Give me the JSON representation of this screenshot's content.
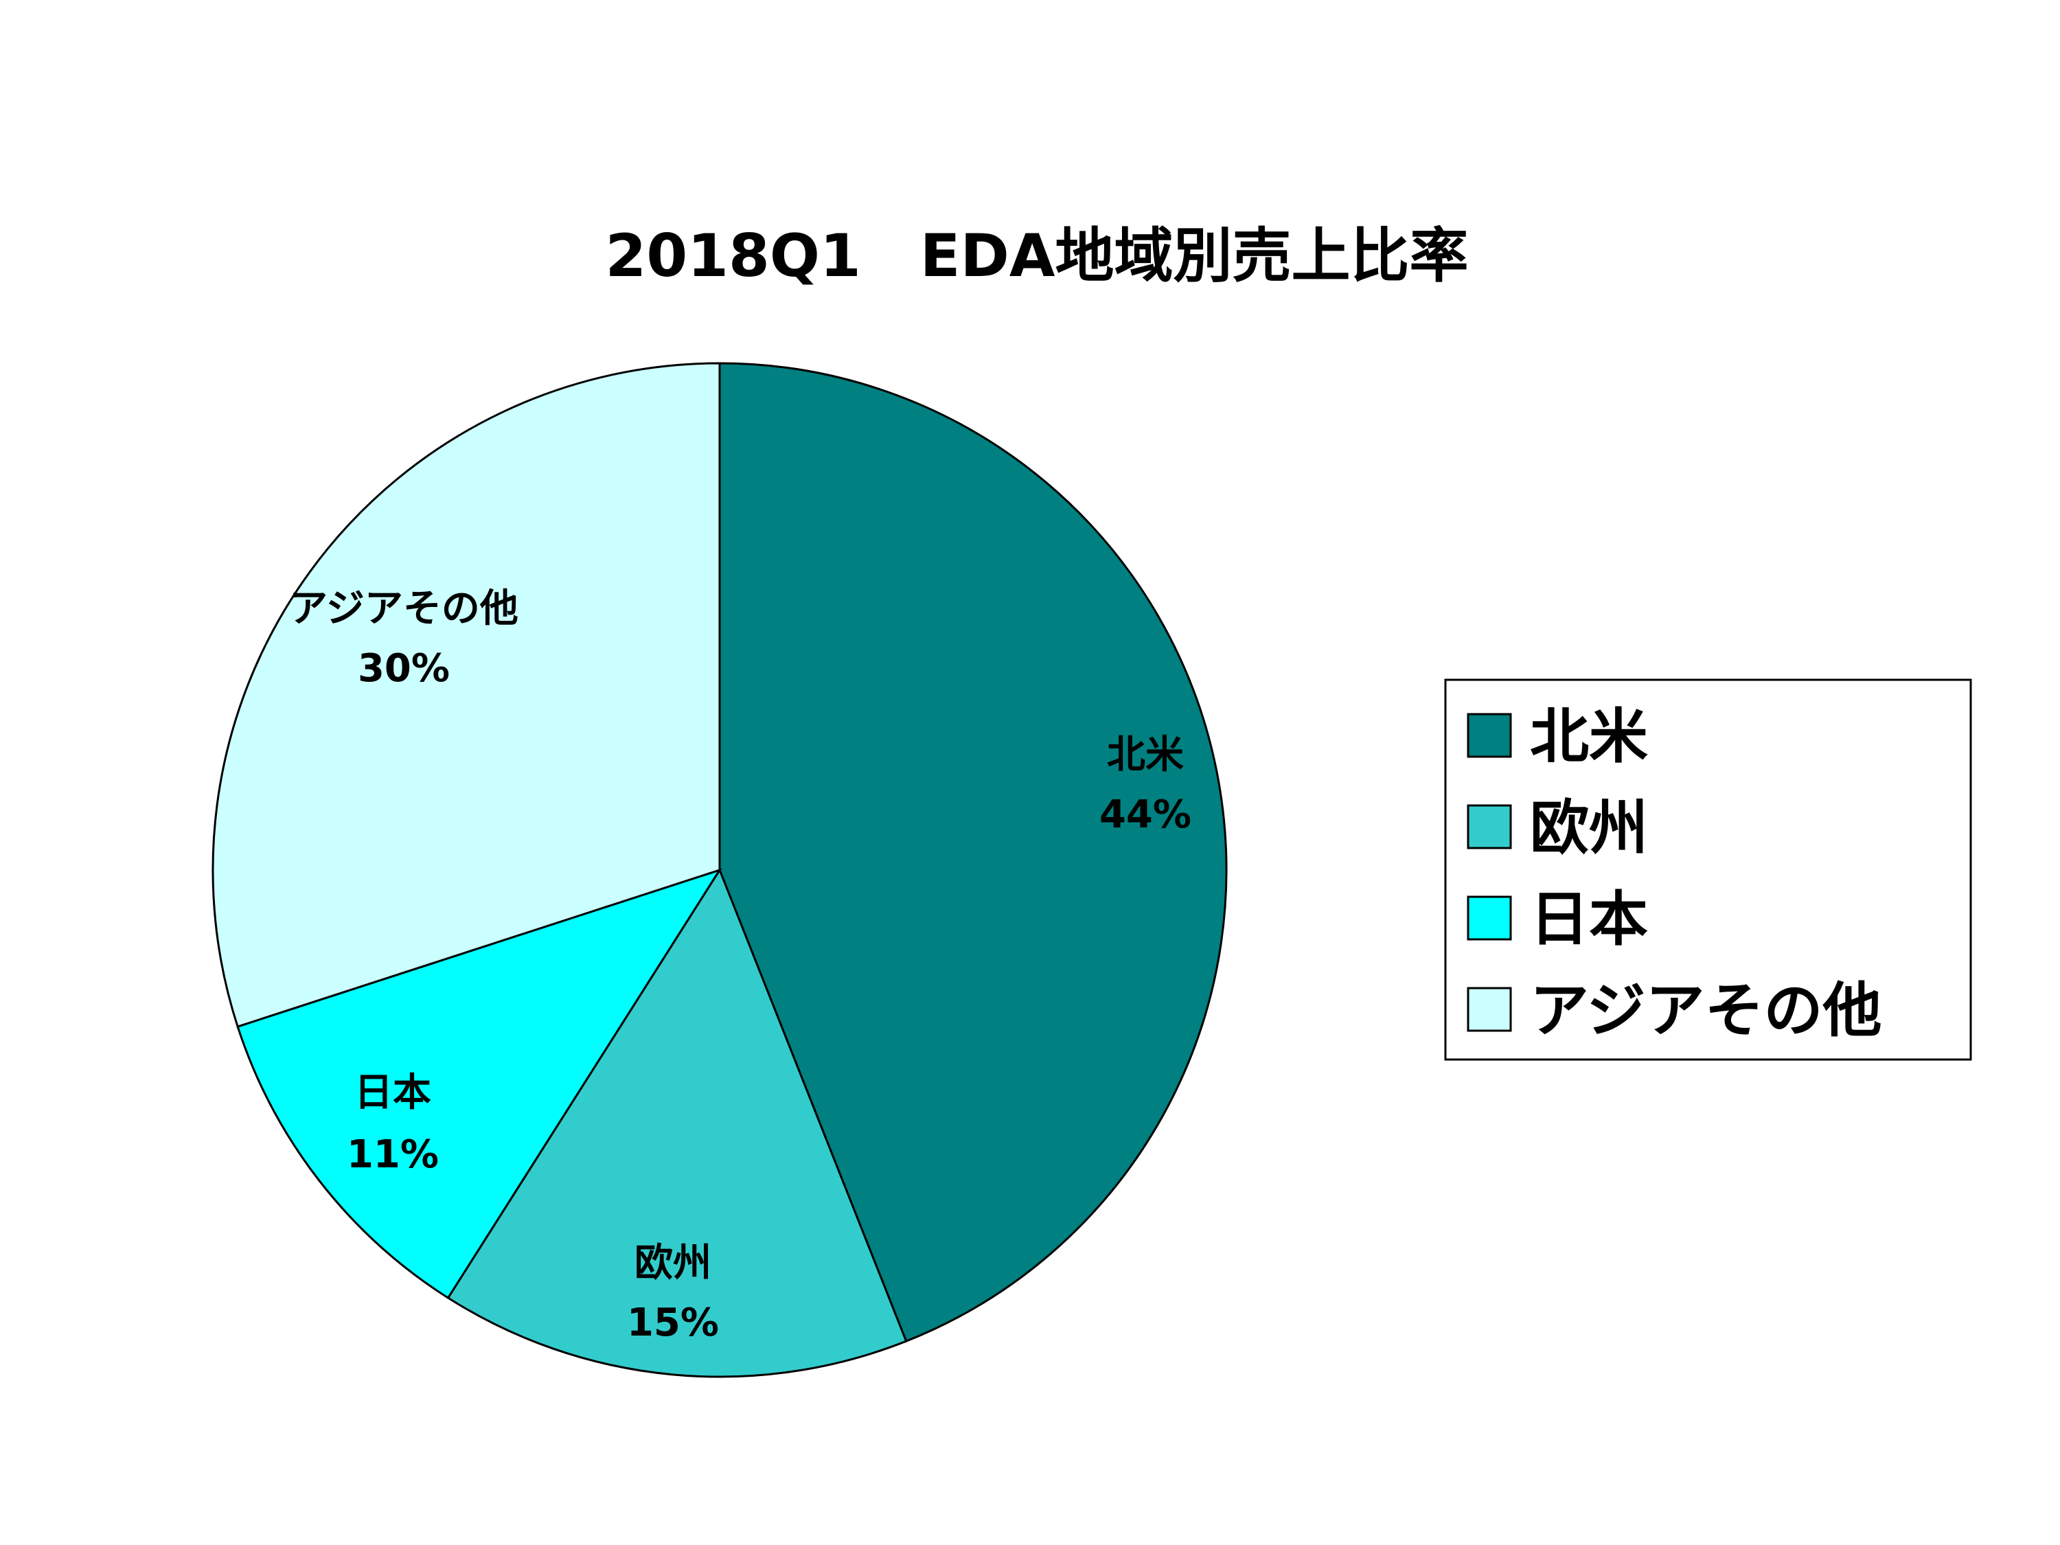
{
  "chart_data": {
    "type": "pie",
    "title": "2018Q1　EDA地域別売上比率",
    "categories": [
      "北米",
      "欧州",
      "日本",
      "アジアその他"
    ],
    "values": [
      44,
      15,
      11,
      30
    ],
    "value_labels": [
      "44%",
      "15%",
      "11%",
      "30%"
    ],
    "colors": [
      "#008080",
      "#33CCCC",
      "#00FFFF",
      "#CCFFFF"
    ],
    "start_angle_deg": 0,
    "direction": "clockwise",
    "legend_position": "right",
    "slice_border_color": "#000000"
  }
}
